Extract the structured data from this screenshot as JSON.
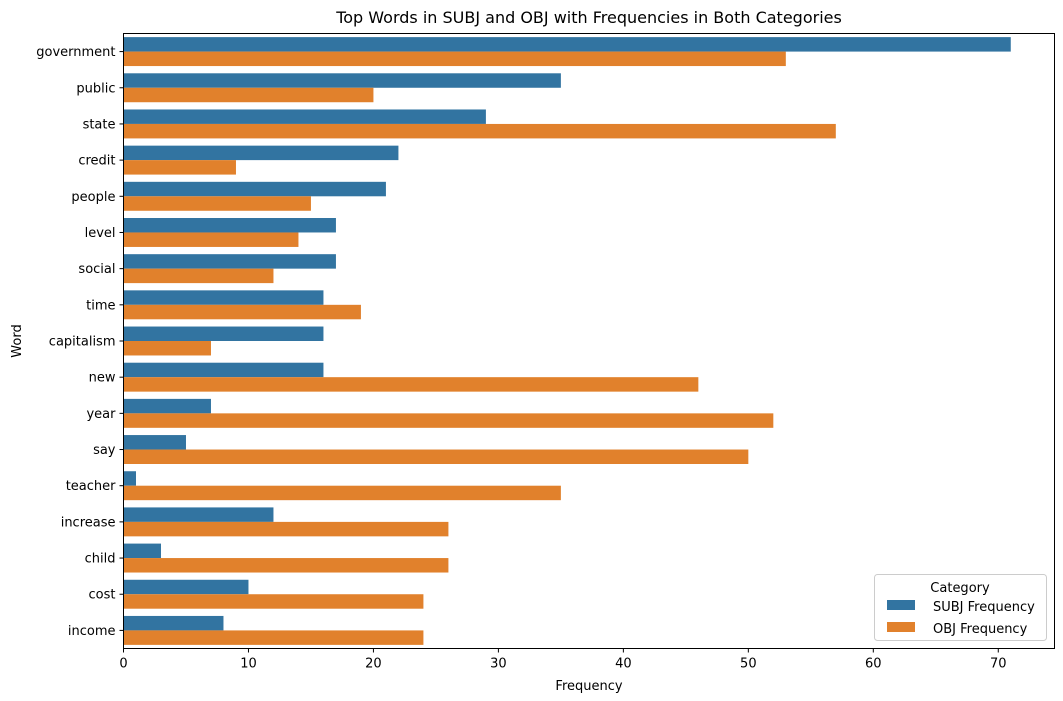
{
  "chart_data": {
    "type": "bar",
    "orientation": "horizontal",
    "title": "Top Words in SUBJ and OBJ with Frequencies in Both Categories",
    "xlabel": "Frequency",
    "ylabel": "Word",
    "xlim": [
      0,
      74.5
    ],
    "x_ticks": [
      "0",
      "10",
      "20",
      "30",
      "40",
      "50",
      "60",
      "70"
    ],
    "grid": false,
    "categories": [
      "government",
      "public",
      "state",
      "credit",
      "people",
      "level",
      "social",
      "time",
      "capitalism",
      "new",
      "year",
      "say",
      "teacher",
      "increase",
      "child",
      "cost",
      "income"
    ],
    "series": [
      {
        "name": "SUBJ Frequency",
        "color": "#3274a1",
        "values": [
          71,
          35,
          29,
          22,
          21,
          17,
          17,
          16,
          16,
          16,
          7,
          5,
          1,
          12,
          3,
          10,
          8
        ]
      },
      {
        "name": "OBJ Frequency",
        "color": "#e1812c",
        "values": [
          53,
          20,
          57,
          9,
          15,
          14,
          12,
          19,
          7,
          46,
          52,
          50,
          35,
          26,
          26,
          24,
          24
        ]
      }
    ],
    "legend": {
      "title": "Category",
      "placement": "lower-right"
    }
  }
}
